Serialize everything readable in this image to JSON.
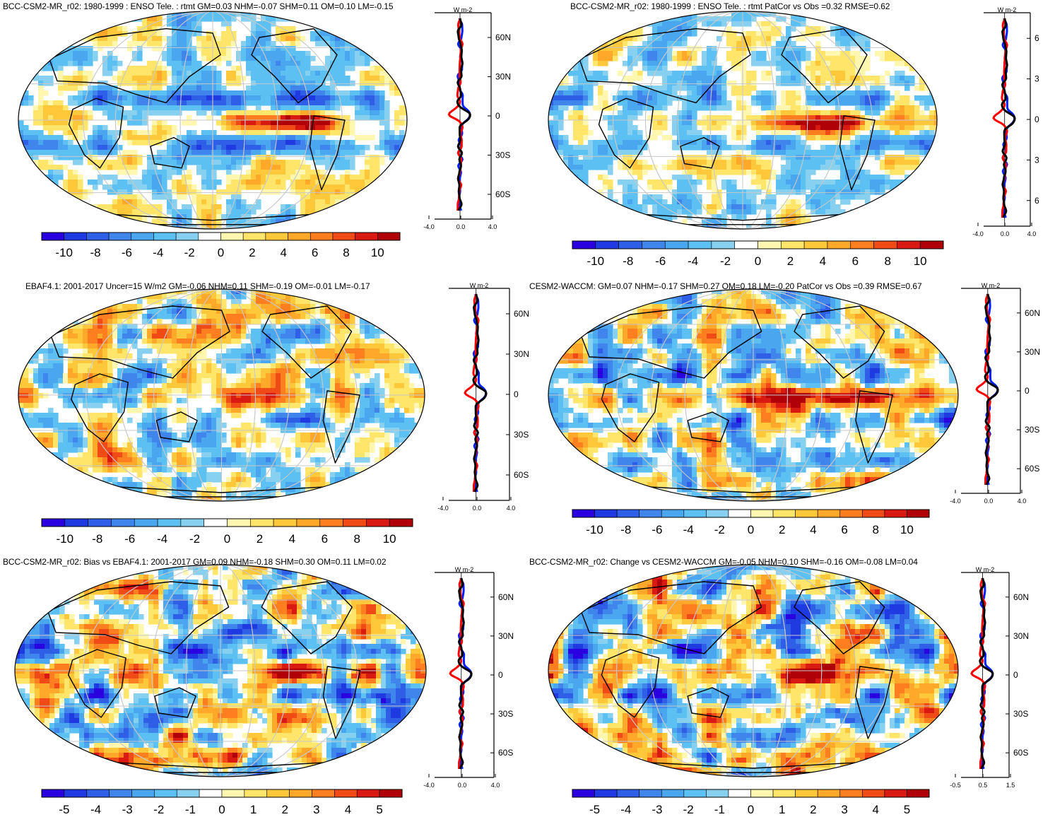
{
  "panels": [
    {
      "id": "p1",
      "title": "BCC-CSM2-MR_r02: 1980-1999 : ENSO Tele. : rtmt GM=0.03 NHM=-0.07 SHM=0.11 OM=0.10 LM=-0.15",
      "colorbar_labels": [
        "-10",
        "-8",
        "-6",
        "-4",
        "-2",
        "0",
        "2",
        "4",
        "6",
        "8",
        "10"
      ],
      "profile_unit": "W m-2",
      "profile_xticks": [
        "-4.0",
        "0.0",
        "4.0"
      ],
      "profile_lat_labels": [
        "60N",
        "30N",
        "0",
        "30S",
        "60S"
      ]
    },
    {
      "id": "p2",
      "title": "BCC-CSM2-MR_r02: 1980-1999 : ENSO Tele. : rtmt PatCor vs Obs =0.32 RMSE=0.62",
      "colorbar_labels": [
        "-10",
        "-8",
        "-6",
        "-4",
        "-2",
        "0",
        "2",
        "4",
        "6",
        "8",
        "10"
      ],
      "profile_unit": "W m-2",
      "profile_xticks": [
        "-4.0",
        "0.0",
        "4.0"
      ],
      "profile_lat_labels": [
        "6",
        "3",
        "0",
        "3",
        "6"
      ]
    },
    {
      "id": "p3",
      "title": "EBAF4.1: 2001-2017 Uncer=15 W/m2 GM=-0.06 NHM=0.11 SHM=-0.19 OM=-0.01 LM=-0.17",
      "colorbar_labels": [
        "-10",
        "-8",
        "-6",
        "-4",
        "-2",
        "0",
        "2",
        "4",
        "6",
        "8",
        "10"
      ],
      "profile_unit": "W m-2",
      "profile_xticks": [
        "-4.0",
        "0.0",
        "4.0"
      ],
      "profile_lat_labels": [
        "60N",
        "30N",
        "0",
        "30S",
        "60S"
      ]
    },
    {
      "id": "p4",
      "title": "CESM2-WACCM: GM=0.07 NHM=-0.17 SHM=0.27 OM=0.18 LM=-0.20 PatCor vs Obs =0.39 RMSE=0.67",
      "colorbar_labels": [
        "-10",
        "-8",
        "-6",
        "-4",
        "-2",
        "0",
        "2",
        "4",
        "6",
        "8",
        "10"
      ],
      "profile_unit": "W m-2",
      "profile_xticks": [
        "-4.0",
        "0.0",
        "4.0"
      ],
      "profile_lat_labels": [
        "60N",
        "30N",
        "0",
        "30S",
        "60S"
      ]
    },
    {
      "id": "p5",
      "title": "BCC-CSM2-MR_r02: Bias vs EBAF4.1: 2001-2017 GM=0.09 NHM=-0.18 SHM=0.30 OM=0.11 LM=0.02",
      "colorbar_labels": [
        "-5",
        "-4",
        "-3",
        "-2",
        "-1",
        "0",
        "1",
        "2",
        "3",
        "4",
        "5"
      ],
      "profile_unit": "W m-2",
      "profile_xticks": [
        "-4.0",
        "0.0",
        "4.0"
      ],
      "profile_lat_labels": [
        "60N",
        "30N",
        "0",
        "30S",
        "60S"
      ]
    },
    {
      "id": "p6",
      "title": "BCC-CSM2-MR_r02: Change vs CESM2-WACCM GM=-0.05 NHM=0.10 SHM=-0.16 OM=-0.08 LM=0.04",
      "colorbar_labels": [
        "-5",
        "-4",
        "-3",
        "-2",
        "-1",
        "0",
        "1",
        "2",
        "3",
        "4",
        "5"
      ],
      "profile_unit": "W m-2",
      "profile_xticks": [
        "-0.5",
        "0.5",
        "1.5"
      ],
      "profile_lat_labels": [
        "60N",
        "30N",
        "0",
        "30S",
        "60S"
      ]
    }
  ],
  "colors": {
    "palette": [
      "#2a00e0",
      "#1f3ae0",
      "#2e5fe6",
      "#3f85ec",
      "#4aa6ef",
      "#5cc0f2",
      "#87d0f0",
      "#ffffff",
      "#fff7b0",
      "#ffe56a",
      "#ffc83a",
      "#ffa82a",
      "#ff7e1f",
      "#f04a16",
      "#d81a12",
      "#b00008"
    ],
    "obs_line": "#000000",
    "model_line_a": "#ff0000",
    "model_line_b": "#0020ff"
  }
}
